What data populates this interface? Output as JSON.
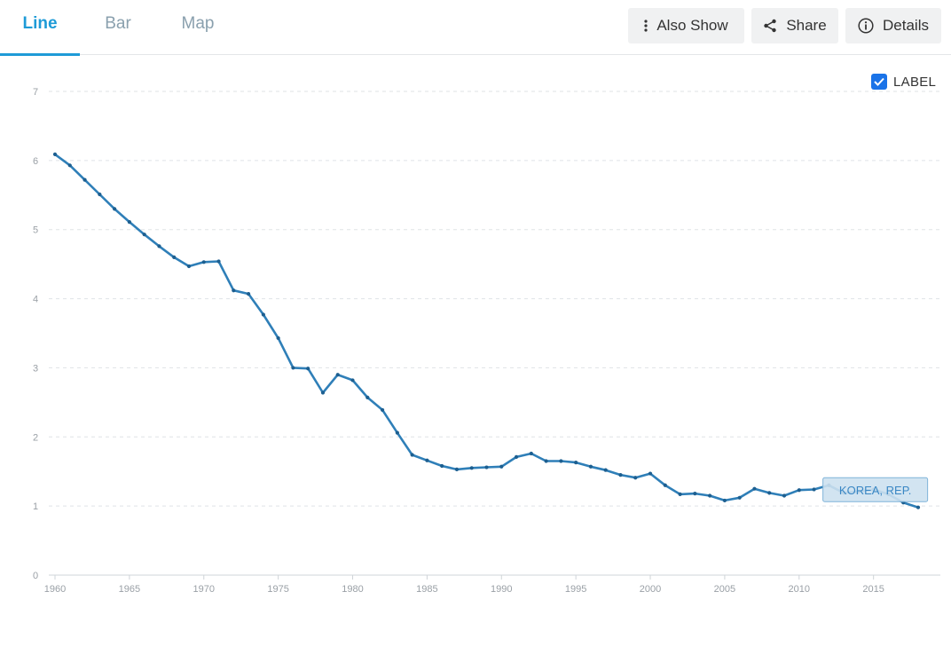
{
  "tabs": [
    {
      "label": "Line",
      "active": true
    },
    {
      "label": "Bar",
      "active": false
    },
    {
      "label": "Map",
      "active": false
    }
  ],
  "toolbar": {
    "also_show": "Also Show",
    "share": "Share",
    "details": "Details"
  },
  "label_toggle": {
    "text": "LABEL",
    "checked": true
  },
  "colors": {
    "accent": "#1e9bd7",
    "series": "#2f7fb8",
    "checkbox": "#1a73e8"
  },
  "chart_data": {
    "type": "line",
    "title": "",
    "xlabel": "",
    "ylabel": "",
    "ylim": [
      0,
      7
    ],
    "xlim": [
      1960,
      2018
    ],
    "yticks": [
      "0",
      "1",
      "2",
      "3",
      "4",
      "5",
      "6",
      "7"
    ],
    "xticks": [
      "1960",
      "1965",
      "1970",
      "1975",
      "1980",
      "1985",
      "1990",
      "1995",
      "2000",
      "2005",
      "2010",
      "2015"
    ],
    "grid": true,
    "series": [
      {
        "name": "KOREA, REP.",
        "x": [
          1960,
          1961,
          1962,
          1963,
          1964,
          1965,
          1966,
          1967,
          1968,
          1969,
          1970,
          1971,
          1972,
          1973,
          1974,
          1975,
          1976,
          1977,
          1978,
          1979,
          1980,
          1981,
          1982,
          1983,
          1984,
          1985,
          1986,
          1987,
          1988,
          1989,
          1990,
          1991,
          1992,
          1993,
          1994,
          1995,
          1996,
          1997,
          1998,
          1999,
          2000,
          2001,
          2002,
          2003,
          2004,
          2005,
          2006,
          2007,
          2008,
          2009,
          2010,
          2011,
          2012,
          2013,
          2014,
          2015,
          2016,
          2017,
          2018
        ],
        "y": [
          6.09,
          5.93,
          5.72,
          5.51,
          5.3,
          5.11,
          4.93,
          4.76,
          4.6,
          4.47,
          4.53,
          4.54,
          4.12,
          4.07,
          3.77,
          3.43,
          3.0,
          2.99,
          2.64,
          2.9,
          2.82,
          2.57,
          2.39,
          2.06,
          1.74,
          1.66,
          1.58,
          1.53,
          1.55,
          1.56,
          1.57,
          1.71,
          1.76,
          1.65,
          1.65,
          1.63,
          1.57,
          1.52,
          1.45,
          1.41,
          1.47,
          1.3,
          1.17,
          1.18,
          1.15,
          1.08,
          1.12,
          1.25,
          1.19,
          1.15,
          1.23,
          1.24,
          1.3,
          1.19,
          1.21,
          1.24,
          1.17,
          1.05,
          0.98
        ]
      }
    ]
  }
}
